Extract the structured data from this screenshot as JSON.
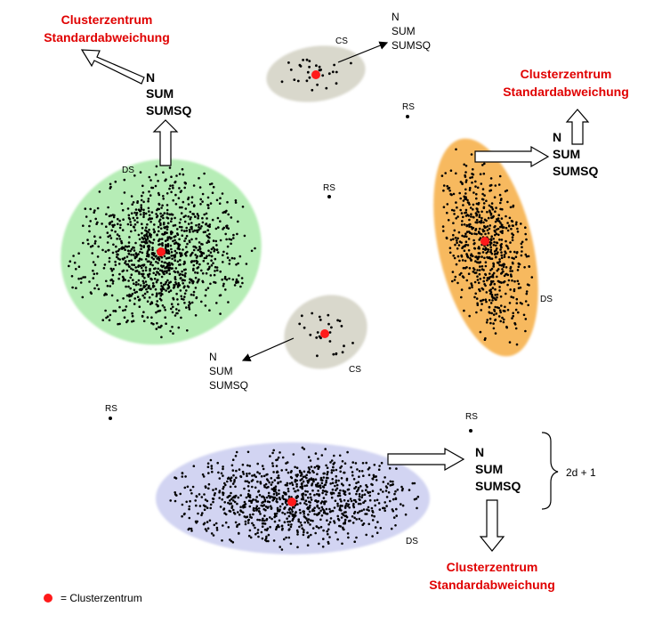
{
  "labels": {
    "clusterzentrum": "Clusterzentrum",
    "standardabweichung": "Standardabweichung",
    "n": "N",
    "sum": "SUM",
    "sumsq": "SUMSQ",
    "ds": "DS",
    "cs": "CS",
    "rs": "RS",
    "brace_text": "2d + 1",
    "legend_text": "= Clusterzentrum"
  },
  "colors": {
    "center": "#ff1a1a",
    "red_text": "#e00000",
    "green_cluster": "#b6edb6",
    "orange_cluster": "#f7b95f",
    "blue_cluster": "#d2d4f2",
    "gray_cluster": "#d9d8cc",
    "point": "#000000"
  }
}
